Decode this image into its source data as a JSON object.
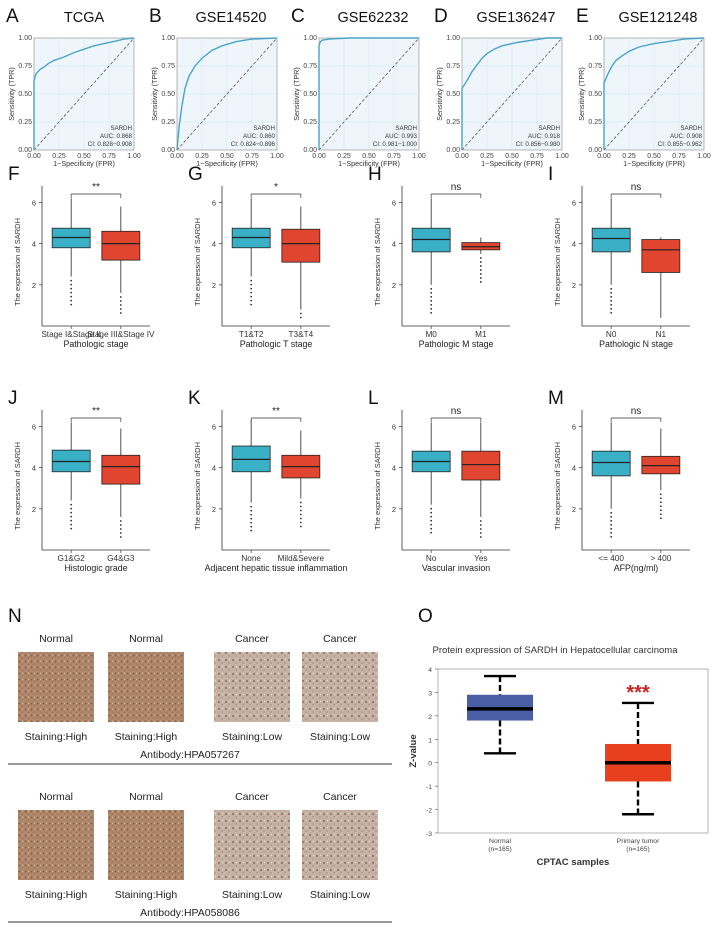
{
  "colors": {
    "roc_line": "#4aa3c8",
    "roc_fill": "#eef6fb",
    "roc_grid": "#cfe3ee",
    "box_blue": "#3ab0c7",
    "box_red": "#e0452f",
    "o_normal": "#4a5ea6",
    "o_tumor": "#e8401f",
    "stars": "#cc2222"
  },
  "chart_data": [
    {
      "panel": "A",
      "type": "line",
      "title": "TCGA",
      "xlabel": "1−Specificity (FPR)",
      "ylabel": "Sensitivity (TPR)",
      "legend": [
        "SARDH",
        "AUC: 0.868",
        "CI: 0.828−0.908"
      ],
      "ticks": [
        "0.00",
        "0.25",
        "0.50",
        "0.75",
        "1.00"
      ],
      "roc": [
        [
          0,
          0
        ],
        [
          0,
          0.62
        ],
        [
          0.02,
          0.68
        ],
        [
          0.06,
          0.72
        ],
        [
          0.1,
          0.74
        ],
        [
          0.14,
          0.77
        ],
        [
          0.2,
          0.8
        ],
        [
          0.3,
          0.83
        ],
        [
          0.4,
          0.87
        ],
        [
          0.5,
          0.9
        ],
        [
          0.6,
          0.93
        ],
        [
          0.7,
          0.95
        ],
        [
          0.8,
          0.97
        ],
        [
          0.9,
          0.99
        ],
        [
          1,
          1
        ]
      ]
    },
    {
      "panel": "B",
      "type": "line",
      "title": "GSE14520",
      "xlabel": "1−Specificity (FPR)",
      "ylabel": "Sensitivity (TPR)",
      "legend": [
        "SARDH",
        "AUC: 0.860",
        "CI: 0.824−0.896"
      ],
      "ticks": [
        "0.00",
        "0.25",
        "0.50",
        "0.75",
        "1.00"
      ],
      "roc": [
        [
          0,
          0
        ],
        [
          0.02,
          0.2
        ],
        [
          0.05,
          0.4
        ],
        [
          0.08,
          0.55
        ],
        [
          0.12,
          0.66
        ],
        [
          0.18,
          0.75
        ],
        [
          0.25,
          0.82
        ],
        [
          0.35,
          0.89
        ],
        [
          0.45,
          0.93
        ],
        [
          0.6,
          0.97
        ],
        [
          0.75,
          0.99
        ],
        [
          1,
          1
        ]
      ]
    },
    {
      "panel": "C",
      "type": "line",
      "title": "GSE62232",
      "xlabel": "1−Specificity (FPR)",
      "ylabel": "Sensitivity (TPR)",
      "legend": [
        "SARDH",
        "AUC: 0.993",
        "CI: 0.981−1.000"
      ],
      "ticks": [
        "0.00",
        "0.25",
        "0.50",
        "0.75",
        "1.00"
      ],
      "roc": [
        [
          0,
          0
        ],
        [
          0,
          0.93
        ],
        [
          0.01,
          0.96
        ],
        [
          0.03,
          0.98
        ],
        [
          0.1,
          0.99
        ],
        [
          0.3,
          1
        ],
        [
          1,
          1
        ]
      ]
    },
    {
      "panel": "D",
      "type": "line",
      "title": "GSE136247",
      "xlabel": "1−Specificity (FPR)",
      "ylabel": "Sensitivity (TPR)",
      "legend": [
        "SARDH",
        "AUC: 0.918",
        "CI: 0.856−0.980"
      ],
      "ticks": [
        "0.00",
        "0.25",
        "0.50",
        "0.75",
        "1.00"
      ],
      "roc": [
        [
          0,
          0
        ],
        [
          0,
          0.55
        ],
        [
          0.05,
          0.62
        ],
        [
          0.1,
          0.7
        ],
        [
          0.15,
          0.76
        ],
        [
          0.2,
          0.82
        ],
        [
          0.25,
          0.86
        ],
        [
          0.32,
          0.9
        ],
        [
          0.4,
          0.93
        ],
        [
          0.55,
          0.96
        ],
        [
          0.7,
          0.98
        ],
        [
          0.85,
          1
        ],
        [
          1,
          1
        ]
      ]
    },
    {
      "panel": "E",
      "type": "line",
      "title": "GSE121248",
      "xlabel": "1−Specificity (FPR)",
      "ylabel": "Sensitivity (TPR)",
      "legend": [
        "SARDH",
        "AUC: 0.908",
        "CI: 0.855−0.962"
      ],
      "ticks": [
        "0.00",
        "0.25",
        "0.50",
        "0.75",
        "1.00"
      ],
      "roc": [
        [
          0,
          0
        ],
        [
          0,
          0.6
        ],
        [
          0.04,
          0.68
        ],
        [
          0.08,
          0.75
        ],
        [
          0.12,
          0.8
        ],
        [
          0.18,
          0.84
        ],
        [
          0.25,
          0.88
        ],
        [
          0.35,
          0.92
        ],
        [
          0.5,
          0.95
        ],
        [
          0.65,
          0.97
        ],
        [
          0.8,
          0.99
        ],
        [
          1,
          1
        ]
      ]
    }
  ],
  "box_panels": [
    {
      "panel": "F",
      "ylabel": "The expression of SARDH",
      "xtitle": "Pathologic stage",
      "cats": [
        "Stage I&Stage II",
        "Stage III&Stage IV"
      ],
      "sig": "**",
      "yticks": [
        "2",
        "4",
        "6"
      ],
      "boxes": [
        {
          "q1": 3.8,
          "med": 4.3,
          "q3": 4.75,
          "lo": 2.4,
          "hi": 6.2
        },
        {
          "q1": 3.2,
          "med": 4.0,
          "q3": 4.6,
          "lo": 1.6,
          "hi": 5.8
        }
      ]
    },
    {
      "panel": "G",
      "ylabel": "The expression of SARDH",
      "xtitle": "Pathologic T stage",
      "cats": [
        "T1&T2",
        "T3&T4"
      ],
      "sig": "*",
      "yticks": [
        "2",
        "4",
        "6"
      ],
      "boxes": [
        {
          "q1": 3.8,
          "med": 4.3,
          "q3": 4.75,
          "lo": 2.4,
          "hi": 6.2
        },
        {
          "q1": 3.1,
          "med": 4.0,
          "q3": 4.7,
          "lo": 0.8,
          "hi": 5.8
        }
      ]
    },
    {
      "panel": "H",
      "ylabel": "The expression of SARDH",
      "xtitle": "Pathologic M stage",
      "cats": [
        "M0",
        "M1"
      ],
      "sig": "ns",
      "yticks": [
        "2",
        "4",
        "6"
      ],
      "boxes": [
        {
          "q1": 3.6,
          "med": 4.2,
          "q3": 4.75,
          "lo": 2.0,
          "hi": 6.2
        },
        {
          "q1": 3.7,
          "med": 3.85,
          "q3": 4.05,
          "lo": 3.5,
          "hi": 4.3
        }
      ]
    },
    {
      "panel": "I",
      "ylabel": "The expression of SARDH",
      "xtitle": "Pathologic N stage",
      "cats": [
        "N0",
        "N1"
      ],
      "sig": "ns",
      "yticks": [
        "2",
        "4",
        "6"
      ],
      "boxes": [
        {
          "q1": 3.6,
          "med": 4.25,
          "q3": 4.75,
          "lo": 2.0,
          "hi": 6.2
        },
        {
          "q1": 2.6,
          "med": 3.7,
          "q3": 4.2,
          "lo": 0.4,
          "hi": 4.3
        }
      ]
    },
    {
      "panel": "J",
      "ylabel": "The expression of SARDH",
      "xtitle": "Histologic grade",
      "cats": [
        "G1&G2",
        "G4&G3"
      ],
      "sig": "**",
      "yticks": [
        "2",
        "4",
        "6"
      ],
      "boxes": [
        {
          "q1": 3.8,
          "med": 4.3,
          "q3": 4.85,
          "lo": 2.4,
          "hi": 6.2
        },
        {
          "q1": 3.2,
          "med": 4.05,
          "q3": 4.6,
          "lo": 1.6,
          "hi": 5.9
        }
      ]
    },
    {
      "panel": "K",
      "ylabel": "The expression of SARDH",
      "xtitle": "Adjacent hepatic tissue inflammation",
      "cats": [
        "None",
        "Mild&Severe"
      ],
      "sig": "**",
      "yticks": [
        "2",
        "4",
        "6"
      ],
      "boxes": [
        {
          "q1": 3.8,
          "med": 4.4,
          "q3": 5.05,
          "lo": 2.3,
          "hi": 6.3
        },
        {
          "q1": 3.5,
          "med": 4.05,
          "q3": 4.6,
          "lo": 2.5,
          "hi": 5.8
        }
      ]
    },
    {
      "panel": "L",
      "ylabel": "The expression of SARDH",
      "xtitle": "Vascular invasion",
      "cats": [
        "No",
        "Yes"
      ],
      "sig": "ns",
      "yticks": [
        "2",
        "4",
        "6"
      ],
      "boxes": [
        {
          "q1": 3.8,
          "med": 4.3,
          "q3": 4.8,
          "lo": 2.2,
          "hi": 6.2
        },
        {
          "q1": 3.4,
          "med": 4.15,
          "q3": 4.8,
          "lo": 1.6,
          "hi": 6.2
        }
      ]
    },
    {
      "panel": "M",
      "ylabel": "The expression of SARDH",
      "xtitle": "AFP(ng/ml)",
      "cats": [
        "<= 400",
        "> 400"
      ],
      "sig": "ns",
      "yticks": [
        "2",
        "4",
        "6"
      ],
      "boxes": [
        {
          "q1": 3.6,
          "med": 4.25,
          "q3": 4.8,
          "lo": 2.0,
          "hi": 6.2
        },
        {
          "q1": 3.7,
          "med": 4.1,
          "q3": 4.55,
          "lo": 2.9,
          "hi": 5.9
        }
      ]
    }
  ],
  "panel_n": {
    "label": "N",
    "rows": [
      {
        "heads": [
          "Normal",
          "Normal",
          "Cancer",
          "Cancer"
        ],
        "stain": [
          "Staining:High",
          "Staining:High",
          "Staining:Low",
          "Staining:Low"
        ],
        "antibody": "Antibody:HPA057267"
      },
      {
        "heads": [
          "Normal",
          "Normal",
          "Cancer",
          "Cancer"
        ],
        "stain": [
          "Staining:High",
          "Staining:High",
          "Staining:Low",
          "Staining:Low"
        ],
        "antibody": "Antibody:HPA058086"
      }
    ]
  },
  "panel_o": {
    "label": "O",
    "title": "Protein expression of SARDH in Hepatocellular carcinoma",
    "ylabel": "Z-value",
    "xtitle": "CPTAC samples",
    "yticks": [
      "4",
      "3",
      "2",
      "1",
      "0",
      "-1",
      "-2",
      "-3"
    ],
    "cats": [
      "Normal",
      "Primary tumor"
    ],
    "ns": [
      "(n=165)",
      "(n=165)"
    ],
    "stars": "***",
    "boxes": [
      {
        "q1": 1.8,
        "med": 2.3,
        "q3": 2.9,
        "lo": 0.4,
        "hi": 3.7
      },
      {
        "q1": -0.8,
        "med": 0.0,
        "q3": 0.8,
        "lo": -2.2,
        "hi": 2.55
      }
    ]
  }
}
